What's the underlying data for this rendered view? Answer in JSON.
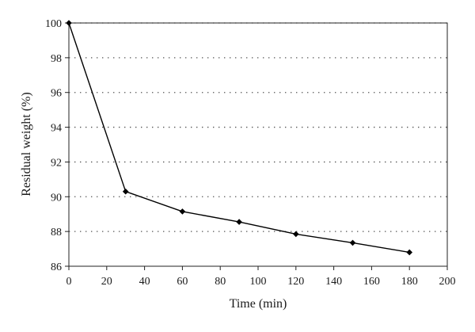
{
  "chart_data": {
    "type": "line",
    "xlabel": "Time (min)",
    "ylabel": "Residual weight (%)",
    "xlim": [
      0,
      200
    ],
    "ylim": [
      86,
      100
    ],
    "x_ticks": [
      0,
      20,
      40,
      60,
      80,
      100,
      120,
      140,
      160,
      180,
      200
    ],
    "y_ticks": [
      86,
      88,
      90,
      92,
      94,
      96,
      98,
      100
    ],
    "grid": "horizontal dotted",
    "marker": "diamond",
    "series": [
      {
        "x": [
          0,
          30,
          60,
          90,
          120,
          150,
          180
        ],
        "values": [
          100,
          90.3,
          89.15,
          88.55,
          87.85,
          87.35,
          86.8
        ]
      }
    ],
    "colors": {
      "line": "#000000",
      "grid": "#555555",
      "frame": "#222222"
    }
  }
}
